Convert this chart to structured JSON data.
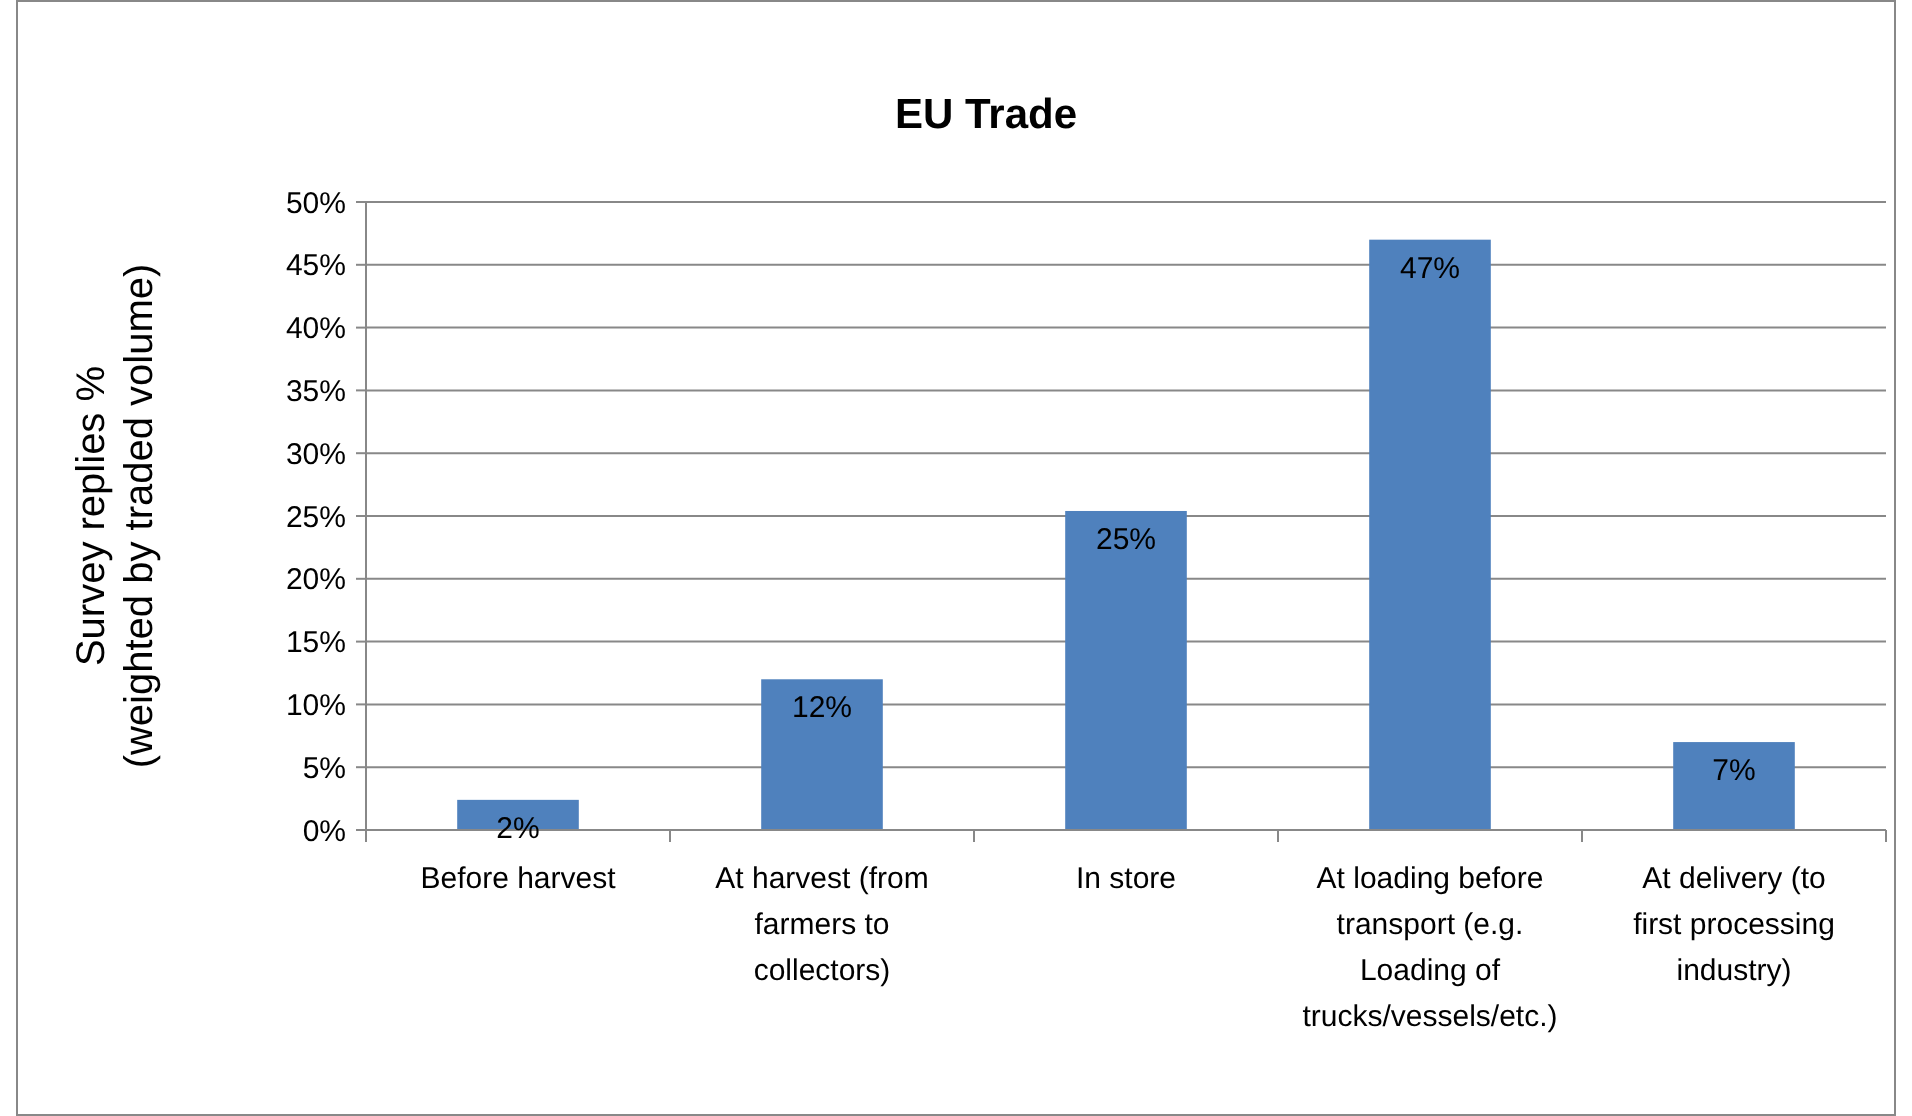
{
  "chart_data": {
    "type": "bar",
    "title": "EU Trade",
    "ylabel": "Survey replies %\n(weighted by traded volume)",
    "categories": [
      "Before harvest",
      "At harvest (from farmers to collectors)",
      "In store",
      "At loading before transport (e.g. Loading of trucks/vessels/etc.)",
      "At delivery (to first processing industry)"
    ],
    "values": [
      2.4,
      12,
      25.4,
      47,
      7
    ],
    "value_labels": [
      "2%",
      "12%",
      "25%",
      "47%",
      "7%"
    ],
    "color": "#4f81bd",
    "ylim": [
      0,
      50
    ],
    "yticks": [
      {
        "value": 0,
        "label": "0%"
      },
      {
        "value": 5,
        "label": "5%"
      },
      {
        "value": 10,
        "label": "10%"
      },
      {
        "value": 15,
        "label": "15%"
      },
      {
        "value": 20,
        "label": "20%"
      },
      {
        "value": 25,
        "label": "25%"
      },
      {
        "value": 30,
        "label": "30%"
      },
      {
        "value": 35,
        "label": "35%"
      },
      {
        "value": 40,
        "label": "40%"
      },
      {
        "value": 45,
        "label": "45%"
      },
      {
        "value": 50,
        "label": "50%"
      }
    ],
    "grid": "y"
  }
}
